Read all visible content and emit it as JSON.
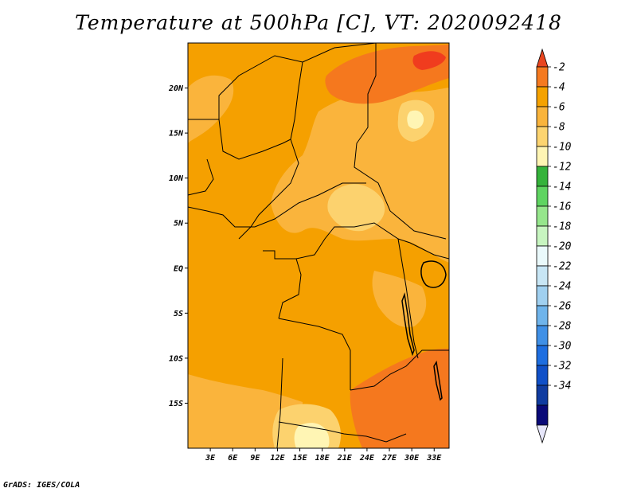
{
  "title": "Temperature at 500hPa [C], VT: 2020092418",
  "credit": "GrADS: IGES/COLA",
  "map": {
    "lon_range": [
      0,
      35
    ],
    "lat_range": [
      -20,
      25
    ],
    "lat_ticks": [
      {
        "value": 20,
        "label": "20N"
      },
      {
        "value": 15,
        "label": "15N"
      },
      {
        "value": 10,
        "label": "10N"
      },
      {
        "value": 5,
        "label": "5N"
      },
      {
        "value": 0,
        "label": "EQ"
      },
      {
        "value": -5,
        "label": "5S"
      },
      {
        "value": -10,
        "label": "10S"
      },
      {
        "value": -15,
        "label": "15S"
      }
    ],
    "lon_ticks": [
      {
        "value": 3,
        "label": "3E"
      },
      {
        "value": 6,
        "label": "6E"
      },
      {
        "value": 9,
        "label": "9E"
      },
      {
        "value": 12,
        "label": "12E"
      },
      {
        "value": 15,
        "label": "15E"
      },
      {
        "value": 18,
        "label": "18E"
      },
      {
        "value": 21,
        "label": "21E"
      },
      {
        "value": 24,
        "label": "24E"
      },
      {
        "value": 27,
        "label": "27E"
      },
      {
        "value": 30,
        "label": "30E"
      },
      {
        "value": 33,
        "label": "33E"
      }
    ],
    "field_colors": {
      "above_-2": "#f03c1e",
      "-4_to_-2": "#f5781e",
      "-6_to_-4": "#f5a000",
      "-8_to_-6": "#fab43c",
      "-10_to_-8": "#fcd26e",
      "-12_to_-10": "#fff5b4"
    }
  },
  "colorbar": {
    "levels": [
      "-2",
      "-4",
      "-6",
      "-8",
      "-10",
      "-12",
      "-14",
      "-16",
      "-18",
      "-20",
      "-22",
      "-24",
      "-26",
      "-28",
      "-30",
      "-32",
      "-34"
    ],
    "colors": [
      "#e8451f",
      "#f57a20",
      "#f5a200",
      "#f9b43c",
      "#fcd470",
      "#fff5b4",
      "#35b33b",
      "#5fd461",
      "#96e68c",
      "#c7f5c0",
      "#eaf9fb",
      "#c8e6f5",
      "#a0d0f0",
      "#6fb4eb",
      "#4090e6",
      "#1e6ee0",
      "#1050c8",
      "#103ca0",
      "#0a0a78",
      "#e6e6fa"
    ]
  }
}
